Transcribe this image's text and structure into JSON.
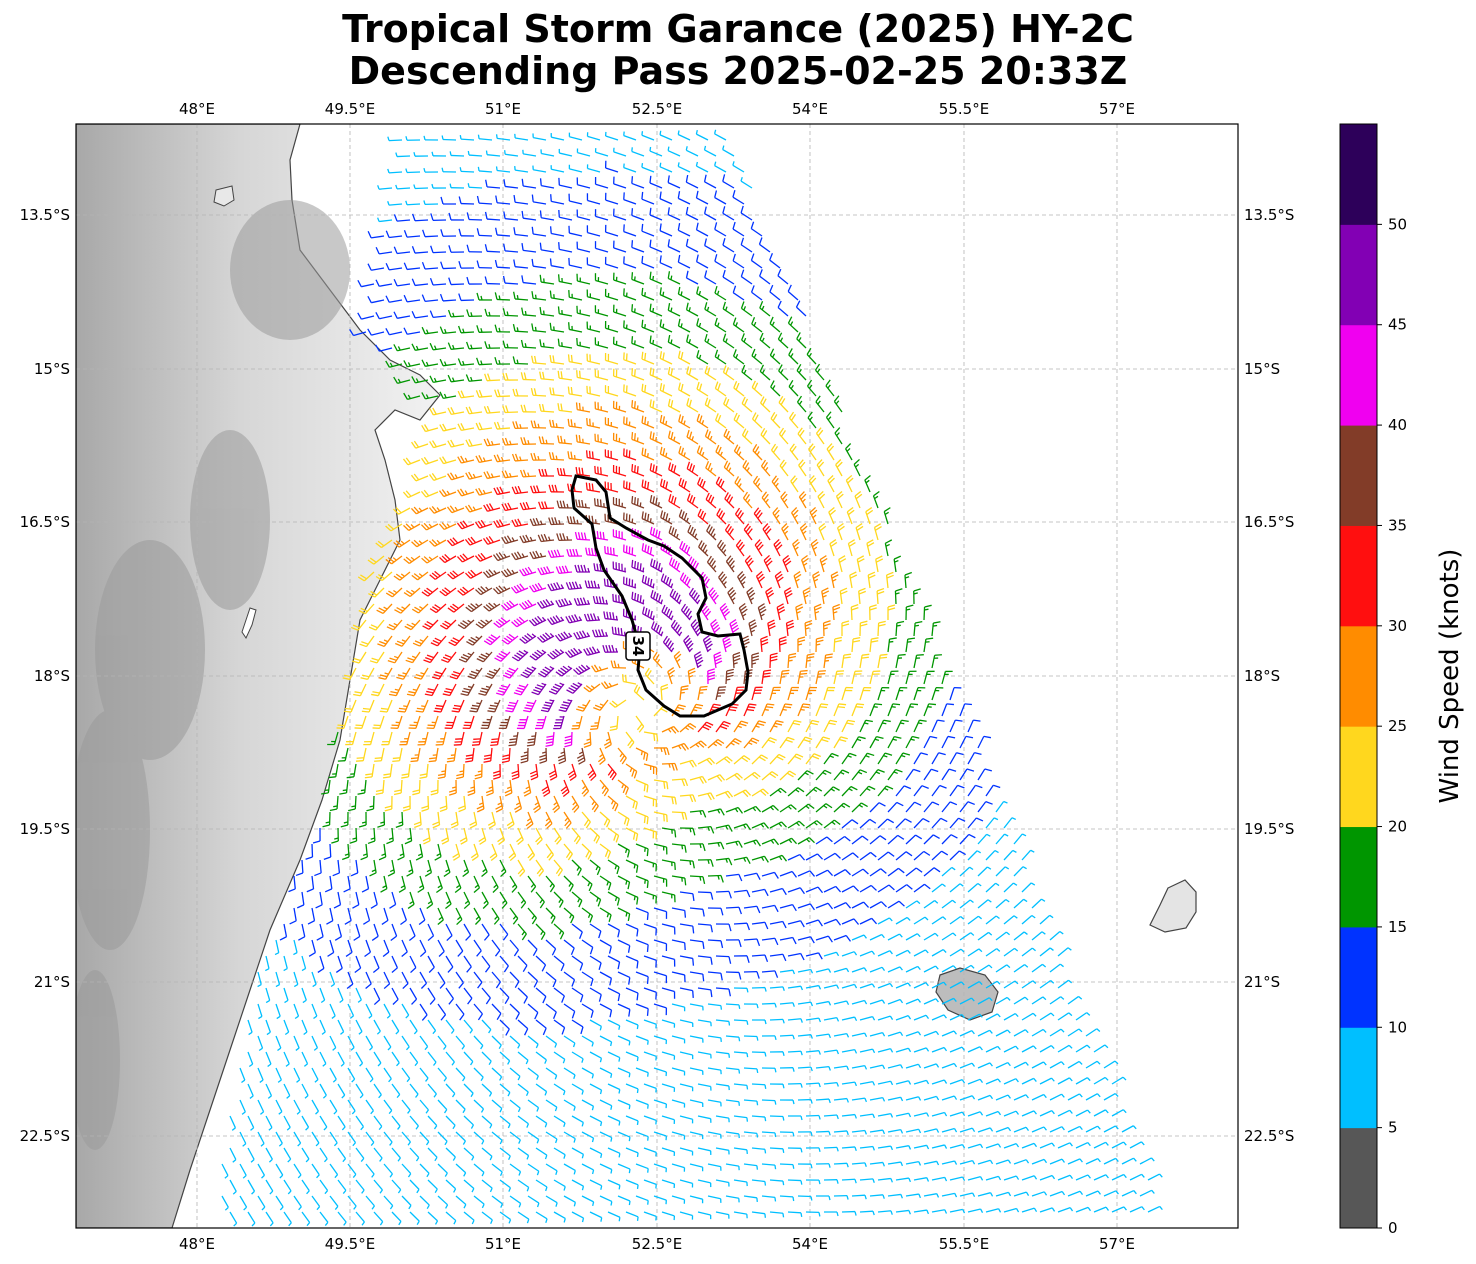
{
  "title": {
    "line1": "Tropical Storm Garance (2025) HY-2C",
    "line2": "Descending Pass 2025-02-25 20:33Z"
  },
  "axes": {
    "lon_labels": [
      "48°E",
      "49.5°E",
      "51°E",
      "52.5°E",
      "54°E",
      "55.5°E",
      "57°E"
    ],
    "lat_labels": [
      "13.5°S",
      "15°S",
      "16.5°S",
      "18°S",
      "19.5°S",
      "21°S",
      "22.5°S"
    ]
  },
  "storm_marker": {
    "label": "34"
  },
  "colorbar": {
    "title": "Wind Speed (knots)",
    "tick_labels": [
      "0",
      "5",
      "10",
      "15",
      "20",
      "25",
      "30",
      "35",
      "40",
      "45",
      "50"
    ],
    "colors": [
      "#575757",
      "#00bfff",
      "#0033ff",
      "#009600",
      "#ffd71e",
      "#ff8c00",
      "#ff0f0f",
      "#823c28",
      "#f000f0",
      "#8200b4",
      "#2d005a"
    ]
  }
}
